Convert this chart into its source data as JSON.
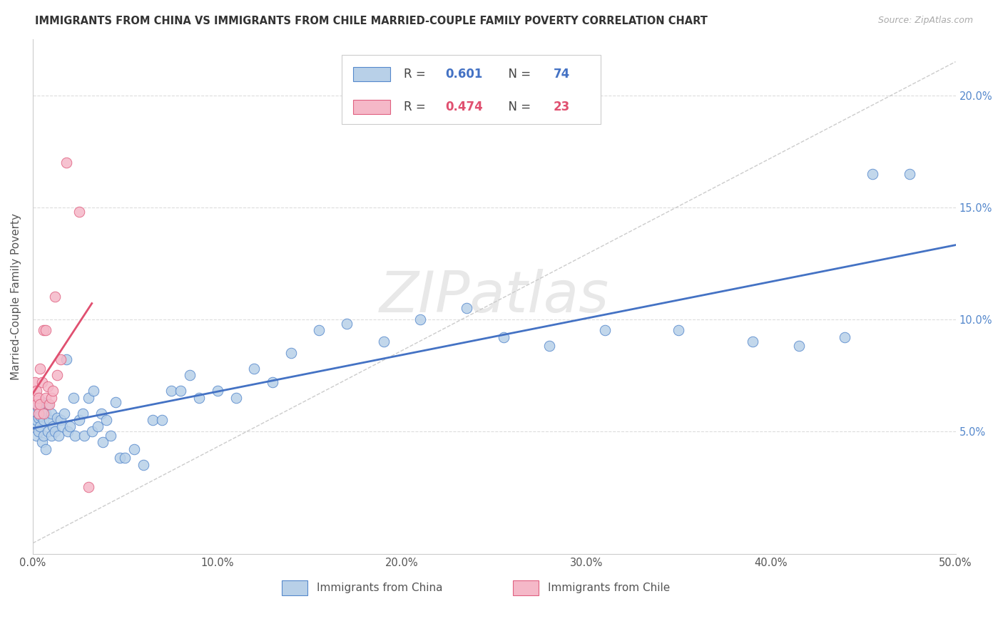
{
  "title": "IMMIGRANTS FROM CHINA VS IMMIGRANTS FROM CHILE MARRIED-COUPLE FAMILY POVERTY CORRELATION CHART",
  "source": "Source: ZipAtlas.com",
  "ylabel": "Married-Couple Family Poverty",
  "legend_china": "Immigrants from China",
  "legend_chile": "Immigrants from Chile",
  "R_china": 0.601,
  "N_china": 74,
  "R_chile": 0.474,
  "N_chile": 23,
  "color_china": "#b8d0e8",
  "color_chile": "#f5b8c8",
  "line_color_china": "#4472c4",
  "line_color_chile": "#e05070",
  "edge_china": "#5588cc",
  "edge_chile": "#e06080",
  "background_color": "#ffffff",
  "xlim": [
    0,
    0.5
  ],
  "ylim": [
    -0.005,
    0.225
  ],
  "china_x": [
    0.001,
    0.001,
    0.002,
    0.002,
    0.002,
    0.003,
    0.003,
    0.003,
    0.004,
    0.004,
    0.005,
    0.005,
    0.006,
    0.006,
    0.007,
    0.007,
    0.008,
    0.008,
    0.009,
    0.01,
    0.01,
    0.011,
    0.012,
    0.013,
    0.014,
    0.015,
    0.016,
    0.017,
    0.018,
    0.019,
    0.02,
    0.022,
    0.023,
    0.025,
    0.027,
    0.028,
    0.03,
    0.032,
    0.033,
    0.035,
    0.037,
    0.038,
    0.04,
    0.042,
    0.045,
    0.047,
    0.05,
    0.055,
    0.06,
    0.065,
    0.07,
    0.075,
    0.08,
    0.085,
    0.09,
    0.1,
    0.11,
    0.12,
    0.13,
    0.14,
    0.155,
    0.17,
    0.19,
    0.21,
    0.235,
    0.255,
    0.28,
    0.31,
    0.35,
    0.39,
    0.415,
    0.44,
    0.455,
    0.475
  ],
  "china_y": [
    0.053,
    0.058,
    0.048,
    0.055,
    0.062,
    0.05,
    0.056,
    0.06,
    0.052,
    0.057,
    0.045,
    0.063,
    0.048,
    0.055,
    0.042,
    0.058,
    0.05,
    0.062,
    0.055,
    0.048,
    0.058,
    0.052,
    0.05,
    0.056,
    0.048,
    0.055,
    0.052,
    0.058,
    0.082,
    0.05,
    0.052,
    0.065,
    0.048,
    0.055,
    0.058,
    0.048,
    0.065,
    0.05,
    0.068,
    0.052,
    0.058,
    0.045,
    0.055,
    0.048,
    0.063,
    0.038,
    0.038,
    0.042,
    0.035,
    0.055,
    0.055,
    0.068,
    0.068,
    0.075,
    0.065,
    0.068,
    0.065,
    0.078,
    0.072,
    0.085,
    0.095,
    0.098,
    0.09,
    0.1,
    0.105,
    0.092,
    0.088,
    0.095,
    0.095,
    0.09,
    0.088,
    0.092,
    0.165,
    0.165
  ],
  "chile_x": [
    0.001,
    0.001,
    0.002,
    0.002,
    0.003,
    0.003,
    0.004,
    0.004,
    0.005,
    0.006,
    0.006,
    0.007,
    0.007,
    0.008,
    0.009,
    0.01,
    0.011,
    0.012,
    0.013,
    0.015,
    0.018,
    0.025,
    0.03
  ],
  "chile_y": [
    0.065,
    0.072,
    0.062,
    0.068,
    0.058,
    0.065,
    0.062,
    0.078,
    0.072,
    0.058,
    0.095,
    0.095,
    0.065,
    0.07,
    0.062,
    0.065,
    0.068,
    0.11,
    0.075,
    0.082,
    0.17,
    0.148,
    0.025
  ]
}
